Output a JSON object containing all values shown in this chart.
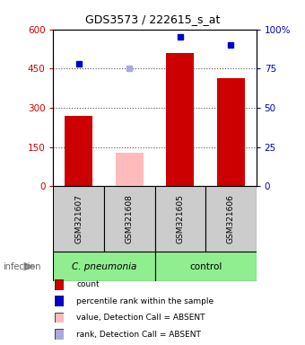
{
  "title": "GDS3573 / 222615_s_at",
  "samples": [
    "GSM321607",
    "GSM321608",
    "GSM321605",
    "GSM321606"
  ],
  "bar_values": [
    270,
    130,
    510,
    415
  ],
  "dot_values": [
    78,
    75,
    95,
    90
  ],
  "absent_flags": [
    false,
    true,
    false,
    false
  ],
  "bar_color_present": "#cc0000",
  "bar_color_absent": "#ffbbbb",
  "dot_color_present": "#0000cc",
  "dot_color_absent": "#aaaadd",
  "ylim_left": [
    0,
    600
  ],
  "ylim_right": [
    0,
    100
  ],
  "yticks_left": [
    0,
    150,
    300,
    450,
    600
  ],
  "ytick_labels_left": [
    "0",
    "150",
    "300",
    "450",
    "600"
  ],
  "yticks_right": [
    0,
    25,
    50,
    75,
    100
  ],
  "ytick_labels_right": [
    "0",
    "25",
    "50",
    "75",
    "100%"
  ],
  "sample_box_color": "#cccccc",
  "group_color": "#90EE90",
  "group_names": [
    "C. pneumonia",
    "control"
  ],
  "group_ranges": [
    [
      0,
      2
    ],
    [
      2,
      4
    ]
  ],
  "group_italic": [
    true,
    false
  ],
  "infection_label": "infection",
  "legend_items": [
    {
      "color": "#cc0000",
      "label": "count"
    },
    {
      "color": "#0000cc",
      "label": "percentile rank within the sample"
    },
    {
      "color": "#ffbbbb",
      "label": "value, Detection Call = ABSENT"
    },
    {
      "color": "#aaaadd",
      "label": "rank, Detection Call = ABSENT"
    }
  ],
  "background_color": "#ffffff",
  "title_fontsize": 9,
  "tick_fontsize": 7.5,
  "sample_fontsize": 6.5,
  "group_fontsize": 7.5,
  "legend_fontsize": 6.5
}
